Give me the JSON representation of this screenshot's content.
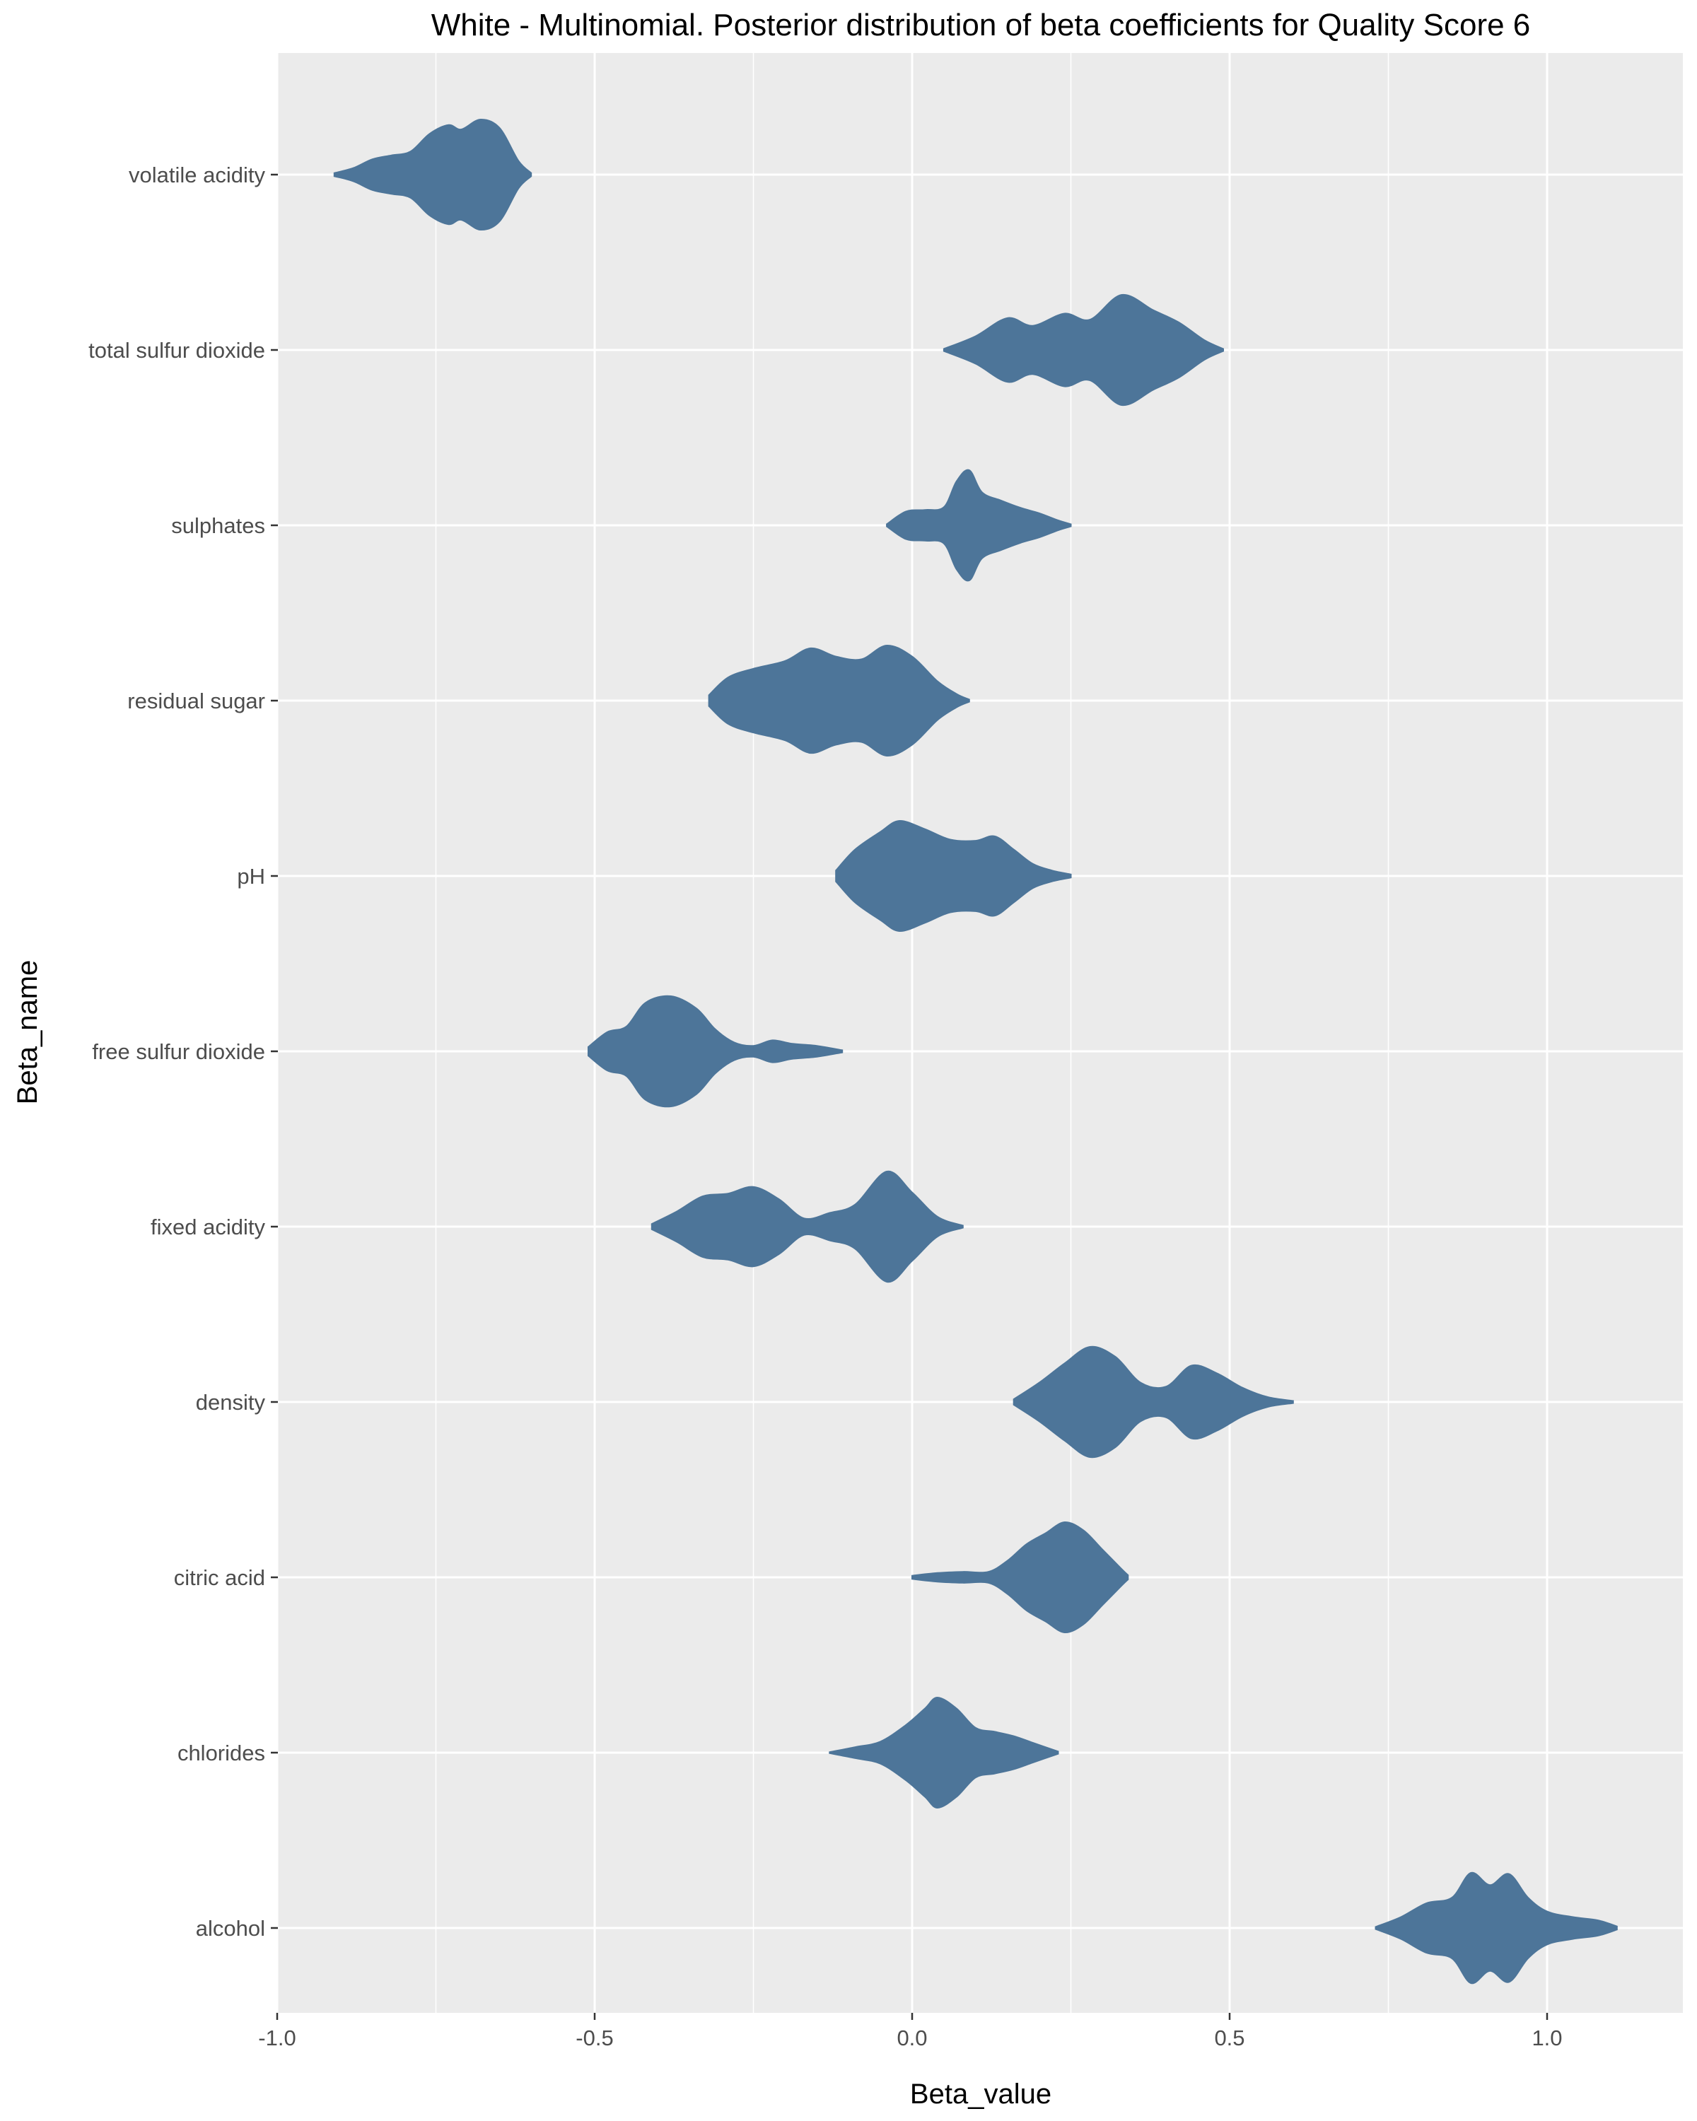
{
  "chart_data": {
    "type": "violin",
    "title": "White - Multinomial. Posterior distribution of beta coefficients for Quality Score 6",
    "xlabel": "Beta_value",
    "ylabel": "Beta_name",
    "xlim": [
      -1.0,
      1.1
    ],
    "x_ticks": [
      "-1.0",
      "-0.5",
      "0.0",
      "0.5",
      "1.0"
    ],
    "x_tick_values": [
      -1.0,
      -0.5,
      0.0,
      0.5,
      1.0
    ],
    "categories": [
      "volatile acidity",
      "total sulfur dioxide",
      "sulphates",
      "residual sugar",
      "pH",
      "free sulfur dioxide",
      "fixed acidity",
      "density",
      "citric acid",
      "chlorides",
      "alcohol"
    ],
    "fill_color": "#4D7599",
    "panel_color": "#EBEBEB",
    "grid": true,
    "series": [
      {
        "category": "volatile acidity",
        "min": -0.91,
        "max": -0.6,
        "density": [
          [
            -0.91,
            0.03
          ],
          [
            -0.88,
            0.12
          ],
          [
            -0.85,
            0.28
          ],
          [
            -0.82,
            0.35
          ],
          [
            -0.79,
            0.42
          ],
          [
            -0.76,
            0.74
          ],
          [
            -0.73,
            0.9
          ],
          [
            -0.71,
            0.82
          ],
          [
            -0.68,
            1.0
          ],
          [
            -0.65,
            0.85
          ],
          [
            -0.62,
            0.25
          ],
          [
            -0.6,
            0.03
          ]
        ]
      },
      {
        "category": "total sulfur dioxide",
        "min": 0.05,
        "max": 0.49,
        "density": [
          [
            0.05,
            0.02
          ],
          [
            0.1,
            0.25
          ],
          [
            0.15,
            0.58
          ],
          [
            0.19,
            0.44
          ],
          [
            0.24,
            0.66
          ],
          [
            0.28,
            0.55
          ],
          [
            0.33,
            1.0
          ],
          [
            0.38,
            0.72
          ],
          [
            0.42,
            0.5
          ],
          [
            0.46,
            0.18
          ],
          [
            0.49,
            0.02
          ]
        ]
      },
      {
        "category": "sulphates",
        "min": -0.04,
        "max": 0.25,
        "density": [
          [
            -0.04,
            0.02
          ],
          [
            -0.01,
            0.25
          ],
          [
            0.02,
            0.28
          ],
          [
            0.05,
            0.33
          ],
          [
            0.07,
            0.8
          ],
          [
            0.09,
            1.0
          ],
          [
            0.11,
            0.6
          ],
          [
            0.14,
            0.45
          ],
          [
            0.17,
            0.32
          ],
          [
            0.2,
            0.22
          ],
          [
            0.23,
            0.09
          ],
          [
            0.25,
            0.02
          ]
        ]
      },
      {
        "category": "residual sugar",
        "min": -0.32,
        "max": 0.09,
        "density": [
          [
            -0.32,
            0.1
          ],
          [
            -0.29,
            0.42
          ],
          [
            -0.25,
            0.58
          ],
          [
            -0.2,
            0.72
          ],
          [
            -0.16,
            0.95
          ],
          [
            -0.12,
            0.8
          ],
          [
            -0.08,
            0.75
          ],
          [
            -0.04,
            1.0
          ],
          [
            0.0,
            0.8
          ],
          [
            0.04,
            0.35
          ],
          [
            0.07,
            0.12
          ],
          [
            0.09,
            0.02
          ]
        ]
      },
      {
        "category": "pH",
        "min": -0.12,
        "max": 0.25,
        "density": [
          [
            -0.12,
            0.1
          ],
          [
            -0.09,
            0.48
          ],
          [
            -0.05,
            0.8
          ],
          [
            -0.02,
            1.0
          ],
          [
            0.02,
            0.85
          ],
          [
            0.06,
            0.66
          ],
          [
            0.1,
            0.64
          ],
          [
            0.13,
            0.72
          ],
          [
            0.16,
            0.48
          ],
          [
            0.19,
            0.22
          ],
          [
            0.22,
            0.1
          ],
          [
            0.25,
            0.03
          ]
        ]
      },
      {
        "category": "free sulfur dioxide",
        "min": -0.51,
        "max": -0.11,
        "density": [
          [
            -0.51,
            0.08
          ],
          [
            -0.48,
            0.35
          ],
          [
            -0.45,
            0.45
          ],
          [
            -0.42,
            0.88
          ],
          [
            -0.38,
            1.0
          ],
          [
            -0.34,
            0.78
          ],
          [
            -0.31,
            0.4
          ],
          [
            -0.28,
            0.16
          ],
          [
            -0.25,
            0.1
          ],
          [
            -0.22,
            0.2
          ],
          [
            -0.19,
            0.14
          ],
          [
            -0.15,
            0.1
          ],
          [
            -0.11,
            0.02
          ]
        ]
      },
      {
        "category": "fixed acidity",
        "min": -0.41,
        "max": 0.08,
        "density": [
          [
            -0.41,
            0.05
          ],
          [
            -0.37,
            0.28
          ],
          [
            -0.33,
            0.55
          ],
          [
            -0.29,
            0.6
          ],
          [
            -0.25,
            0.72
          ],
          [
            -0.21,
            0.5
          ],
          [
            -0.17,
            0.15
          ],
          [
            -0.13,
            0.25
          ],
          [
            -0.09,
            0.4
          ],
          [
            -0.04,
            1.0
          ],
          [
            0.0,
            0.62
          ],
          [
            0.04,
            0.18
          ],
          [
            0.08,
            0.02
          ]
        ]
      },
      {
        "category": "density",
        "min": 0.16,
        "max": 0.6,
        "density": [
          [
            0.16,
            0.05
          ],
          [
            0.2,
            0.35
          ],
          [
            0.24,
            0.7
          ],
          [
            0.28,
            1.0
          ],
          [
            0.32,
            0.82
          ],
          [
            0.36,
            0.35
          ],
          [
            0.4,
            0.28
          ],
          [
            0.44,
            0.66
          ],
          [
            0.48,
            0.52
          ],
          [
            0.52,
            0.26
          ],
          [
            0.56,
            0.09
          ],
          [
            0.6,
            0.02
          ]
        ]
      },
      {
        "category": "citric acid",
        "min": 0.0,
        "max": 0.34,
        "density": [
          [
            0.0,
            0.03
          ],
          [
            0.04,
            0.08
          ],
          [
            0.08,
            0.1
          ],
          [
            0.12,
            0.1
          ],
          [
            0.15,
            0.3
          ],
          [
            0.18,
            0.6
          ],
          [
            0.21,
            0.8
          ],
          [
            0.24,
            1.0
          ],
          [
            0.27,
            0.85
          ],
          [
            0.3,
            0.5
          ],
          [
            0.33,
            0.15
          ],
          [
            0.34,
            0.04
          ]
        ]
      },
      {
        "category": "chlorides",
        "min": -0.13,
        "max": 0.23,
        "density": [
          [
            -0.13,
            0.01
          ],
          [
            -0.09,
            0.1
          ],
          [
            -0.05,
            0.2
          ],
          [
            -0.01,
            0.5
          ],
          [
            0.02,
            0.8
          ],
          [
            0.04,
            1.0
          ],
          [
            0.07,
            0.8
          ],
          [
            0.1,
            0.45
          ],
          [
            0.13,
            0.38
          ],
          [
            0.16,
            0.3
          ],
          [
            0.19,
            0.18
          ],
          [
            0.23,
            0.02
          ]
        ]
      },
      {
        "category": "alcohol",
        "min": 0.73,
        "max": 1.11,
        "density": [
          [
            0.73,
            0.02
          ],
          [
            0.77,
            0.2
          ],
          [
            0.81,
            0.45
          ],
          [
            0.85,
            0.55
          ],
          [
            0.88,
            1.0
          ],
          [
            0.91,
            0.78
          ],
          [
            0.94,
            0.98
          ],
          [
            0.97,
            0.55
          ],
          [
            1.0,
            0.3
          ],
          [
            1.04,
            0.2
          ],
          [
            1.08,
            0.14
          ],
          [
            1.11,
            0.03
          ]
        ]
      }
    ]
  }
}
